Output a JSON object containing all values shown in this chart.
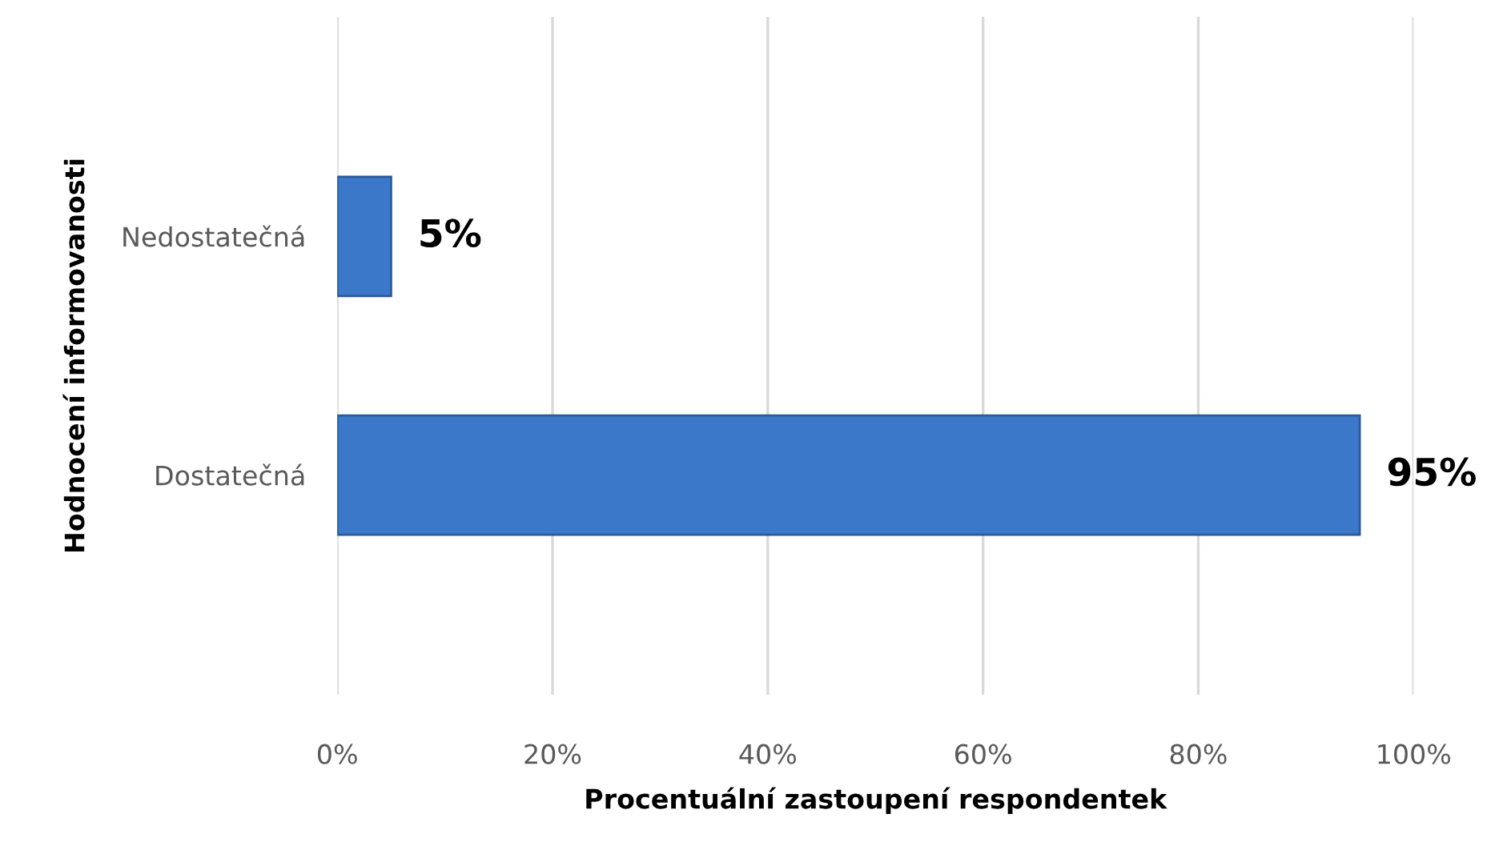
{
  "chart_data": {
    "type": "bar",
    "orientation": "horizontal",
    "categories": [
      "Nedostatečná",
      "Dostatečná"
    ],
    "values": [
      5,
      95
    ],
    "color": "#3b78c9",
    "value_labels": [
      "5%",
      "95%"
    ],
    "xlim": [
      0,
      100
    ],
    "xticks": [
      {
        "value": 0,
        "label": "0%"
      },
      {
        "value": 20,
        "label": "20%"
      },
      {
        "value": 40,
        "label": "40%"
      },
      {
        "value": 60,
        "label": "60%"
      },
      {
        "value": 80,
        "label": "80%"
      },
      {
        "value": 100,
        "label": "100%"
      }
    ],
    "grid": "x",
    "legend": false,
    "xlabel": "Procentuální zastoupení respondentek",
    "ylabel": "Hodnocení informovanosti"
  }
}
